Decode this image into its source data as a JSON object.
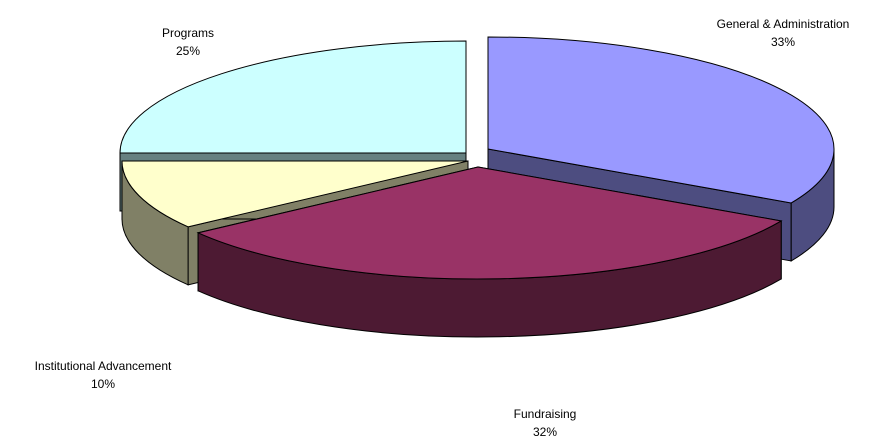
{
  "chart_data": {
    "type": "pie",
    "style": "3d-exploded",
    "title": "",
    "slices": [
      {
        "label": "General & Administration",
        "value": 33,
        "value_label": "33%",
        "color": "#9999ff",
        "side_color": "#4d4d80"
      },
      {
        "label": "Fundraising",
        "value": 32,
        "value_label": "32%",
        "color": "#993366",
        "side_color": "#4d1a33"
      },
      {
        "label": "Institutional Advancement",
        "value": 10,
        "value_label": "10%",
        "color": "#ffffcc",
        "side_color": "#808066"
      },
      {
        "label": "Programs",
        "value": 25,
        "value_label": "25%",
        "color": "#ccffff",
        "side_color": "#668080"
      }
    ],
    "legend": "none",
    "grid": false
  }
}
